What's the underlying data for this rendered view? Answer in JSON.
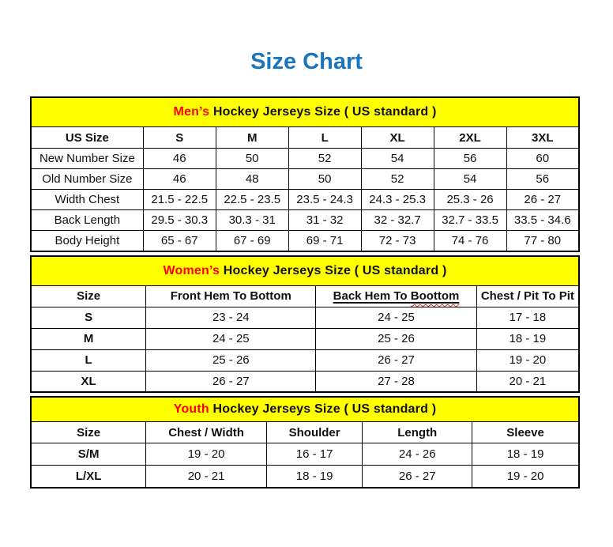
{
  "title": "Size Chart",
  "colors": {
    "title_blue": "#1b75bc",
    "band_yellow": "#ffff00",
    "highlight_red": "#ff0000"
  },
  "sections": [
    {
      "id": "mens",
      "heading_highlight": "Men’s",
      "heading_rest": " Hockey Jerseys Size ( US standard )",
      "columns": [
        "US Size",
        "S",
        "M",
        "L",
        "XL",
        "2XL",
        "3XL"
      ],
      "rows": [
        [
          "New Number Size",
          "46",
          "50",
          "52",
          "54",
          "56",
          "60"
        ],
        [
          "Old Number Size",
          "46",
          "48",
          "50",
          "52",
          "54",
          "56"
        ],
        [
          "Width Chest",
          "21.5 - 22.5",
          "22.5 - 23.5",
          "23.5 - 24.3",
          "24.3 - 25.3",
          "25.3 - 26",
          "26 - 27"
        ],
        [
          "Back Length",
          "29.5 - 30.3",
          "30.3 - 31",
          "31 - 32",
          "32 - 32.7",
          "32.7 - 33.5",
          "33.5 - 34.6"
        ],
        [
          "Body Height",
          "65 - 67",
          "67 - 69",
          "69 - 71",
          "72 - 73",
          "74 - 76",
          "77 - 80"
        ]
      ]
    },
    {
      "id": "womens",
      "heading_highlight": "Women’s",
      "heading_rest": " Hockey Jerseys Size ( US standard )",
      "columns": [
        "Size",
        "Front Hem To Bottom",
        "Back Hem To Boottom",
        "Chest / Pit To Pit"
      ],
      "squiggle": {
        "col": 2,
        "prefix": "Back Hem To ",
        "word": "Boottom",
        "underlined": true
      },
      "rows": [
        [
          "S",
          "23 - 24",
          "24 - 25",
          "17 - 18"
        ],
        [
          "M",
          "24 - 25",
          "25 - 26",
          "18 - 19"
        ],
        [
          "L",
          "25 - 26",
          "26 - 27",
          "19 - 20"
        ],
        [
          "XL",
          "26 - 27",
          "27 - 28",
          "20 - 21"
        ]
      ]
    },
    {
      "id": "youth",
      "heading_highlight": "Youth",
      "heading_rest": " Hockey Jerseys Size ( US standard )",
      "columns": [
        "Size",
        "Chest / Width",
        "Shoulder",
        "Length",
        "Sleeve"
      ],
      "rows": [
        [
          "S/M",
          "19 - 20",
          "16 - 17",
          "24 - 26",
          "18 - 19"
        ],
        [
          "L/XL",
          "20 - 21",
          "18 - 19",
          "26 - 27",
          "19 - 20"
        ]
      ]
    }
  ]
}
